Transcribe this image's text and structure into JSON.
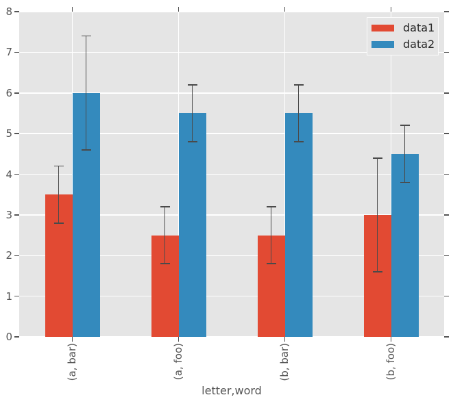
{
  "chart_data": {
    "type": "bar",
    "title": "",
    "xlabel": "letter,word",
    "ylabel": "",
    "categories": [
      "(a, bar)",
      "(a, foo)",
      "(b, bar)",
      "(b, foo)"
    ],
    "series": [
      {
        "name": "data1",
        "color": "#E24A33",
        "values": [
          3.5,
          2.5,
          2.5,
          3.0
        ],
        "errors": [
          0.7,
          0.7,
          0.7,
          1.4
        ]
      },
      {
        "name": "data2",
        "color": "#348ABD",
        "values": [
          6.0,
          5.5,
          5.5,
          4.5
        ],
        "errors": [
          1.4,
          0.7,
          0.7,
          0.7
        ]
      }
    ],
    "ylim": [
      0,
      8
    ],
    "yticks": [
      0,
      1,
      2,
      3,
      4,
      5,
      6,
      7,
      8
    ],
    "grid": true,
    "legend_position": "upper right",
    "colors": {
      "plot_background": "#E5E5E5",
      "grid": "#FFFFFF",
      "tick_text": "#555555",
      "errorbar": "#4A4A4A",
      "legend_text": "#262626"
    }
  }
}
